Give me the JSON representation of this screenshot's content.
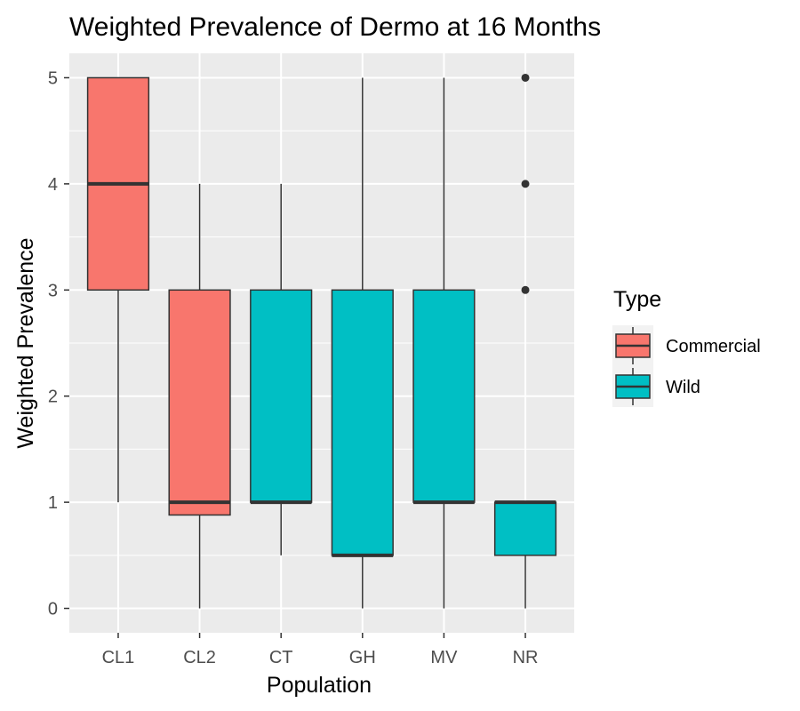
{
  "chart_data": {
    "type": "box",
    "title": "Weighted Prevalence of Dermo at 16 Months",
    "xlabel": "Population",
    "ylabel": "Weighted Prevalence",
    "ylim": [
      -0.23,
      5.23
    ],
    "yticks": [
      0,
      1,
      2,
      3,
      4,
      5
    ],
    "categories": [
      "CL1",
      "CL2",
      "CT",
      "GH",
      "MV",
      "NR"
    ],
    "boxes": [
      {
        "category": "CL1",
        "type": "Commercial",
        "min": 1,
        "q1": 3,
        "median": 4,
        "q3": 5,
        "max": 5,
        "outliers": []
      },
      {
        "category": "CL2",
        "type": "Commercial",
        "min": 0,
        "q1": 0.88,
        "median": 1,
        "q3": 3,
        "max": 4,
        "outliers": []
      },
      {
        "category": "CT",
        "type": "Wild",
        "min": 0.5,
        "q1": 1,
        "median": 1,
        "q3": 3,
        "max": 4,
        "outliers": []
      },
      {
        "category": "GH",
        "type": "Wild",
        "min": 0,
        "q1": 0.5,
        "median": 0.5,
        "q3": 3,
        "max": 5,
        "outliers": []
      },
      {
        "category": "MV",
        "type": "Wild",
        "min": 0,
        "q1": 1,
        "median": 1,
        "q3": 3,
        "max": 5,
        "outliers": []
      },
      {
        "category": "NR",
        "type": "Wild",
        "min": 0,
        "q1": 0.5,
        "median": 1,
        "q3": 1,
        "max": 1,
        "outliers": [
          3,
          4,
          5
        ]
      }
    ],
    "legend": {
      "title": "Type",
      "position": "right",
      "items": [
        {
          "label": "Commercial",
          "color": "#F8766D"
        },
        {
          "label": "Wild",
          "color": "#00BFC4"
        }
      ]
    },
    "grid": true,
    "panel_background": "#EBEBEB",
    "grid_color": "#FFFFFF"
  }
}
